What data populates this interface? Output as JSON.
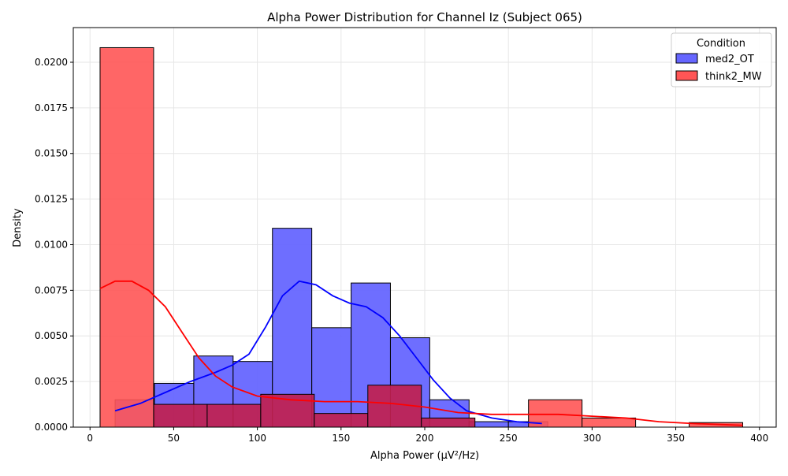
{
  "chart_data": {
    "type": "histogram",
    "title": "Alpha Power Distribution for Channel Iz (Subject 065)",
    "xlabel": "Alpha Power (µV²/Hz)",
    "ylabel": "Density",
    "xlim": [
      -10,
      410
    ],
    "ylim": [
      0,
      0.0219
    ],
    "x_ticks": [
      0,
      50,
      100,
      150,
      200,
      250,
      300,
      350,
      400
    ],
    "y_ticks": [
      0.0,
      0.0025,
      0.005,
      0.0075,
      0.01,
      0.0125,
      0.015,
      0.0175,
      0.02
    ],
    "y_tick_labels": [
      "0.0000",
      "0.0025",
      "0.0050",
      "0.0075",
      "0.0100",
      "0.0125",
      "0.0150",
      "0.0175",
      "0.0200"
    ],
    "grid": true,
    "legend": {
      "title": "Condition",
      "placement": "top-right"
    },
    "series": [
      {
        "name": "med2_OT",
        "color": "#6666ff",
        "line_color": "#0000ff",
        "bins": [
          {
            "x0": 15,
            "x1": 38.5,
            "value": 0.0015
          },
          {
            "x0": 38.5,
            "x1": 62,
            "value": 0.0024
          },
          {
            "x0": 62,
            "x1": 85.5,
            "value": 0.0039
          },
          {
            "x0": 85.5,
            "x1": 109,
            "value": 0.0036
          },
          {
            "x0": 109,
            "x1": 132.5,
            "value": 0.0109
          },
          {
            "x0": 132.5,
            "x1": 156,
            "value": 0.00545
          },
          {
            "x0": 156,
            "x1": 179.5,
            "value": 0.0079
          },
          {
            "x0": 179.5,
            "x1": 203,
            "value": 0.0049
          },
          {
            "x0": 203,
            "x1": 226.5,
            "value": 0.0015
          },
          {
            "x0": 226.5,
            "x1": 250,
            "value": 0.0003
          },
          {
            "x0": 250,
            "x1": 273.5,
            "value": 0.0003
          }
        ],
        "kde": [
          [
            15,
            0.0009
          ],
          [
            30,
            0.0013
          ],
          [
            45,
            0.0019
          ],
          [
            60,
            0.0025
          ],
          [
            75,
            0.003
          ],
          [
            85,
            0.0034
          ],
          [
            95,
            0.004
          ],
          [
            105,
            0.0055
          ],
          [
            115,
            0.0072
          ],
          [
            125,
            0.008
          ],
          [
            135,
            0.0078
          ],
          [
            145,
            0.0072
          ],
          [
            155,
            0.0068
          ],
          [
            165,
            0.0066
          ],
          [
            175,
            0.006
          ],
          [
            185,
            0.005
          ],
          [
            195,
            0.0038
          ],
          [
            205,
            0.0026
          ],
          [
            215,
            0.0016
          ],
          [
            225,
            0.0009
          ],
          [
            240,
            0.0005
          ],
          [
            255,
            0.0003
          ],
          [
            270,
            0.0002
          ]
        ]
      },
      {
        "name": "think2_MW",
        "color": "#ff5555",
        "line_color": "#ff0000",
        "bins": [
          {
            "x0": 6,
            "x1": 38,
            "value": 0.0208
          },
          {
            "x0": 38,
            "x1": 70,
            "value": 0.00125
          },
          {
            "x0": 70,
            "x1": 102,
            "value": 0.00125
          },
          {
            "x0": 102,
            "x1": 134,
            "value": 0.0018
          },
          {
            "x0": 134,
            "x1": 166,
            "value": 0.00075
          },
          {
            "x0": 166,
            "x1": 198,
            "value": 0.0023
          },
          {
            "x0": 198,
            "x1": 230,
            "value": 0.0005
          },
          {
            "x0": 230,
            "x1": 262,
            "value": 0.0
          },
          {
            "x0": 262,
            "x1": 294,
            "value": 0.0015
          },
          {
            "x0": 294,
            "x1": 326,
            "value": 0.0005
          },
          {
            "x0": 326,
            "x1": 358,
            "value": 0.0
          },
          {
            "x0": 358,
            "x1": 390,
            "value": 0.00025
          }
        ],
        "kde": [
          [
            6,
            0.0076
          ],
          [
            15,
            0.008
          ],
          [
            25,
            0.008
          ],
          [
            35,
            0.0075
          ],
          [
            45,
            0.0066
          ],
          [
            55,
            0.0052
          ],
          [
            65,
            0.0038
          ],
          [
            75,
            0.0028
          ],
          [
            85,
            0.0022
          ],
          [
            100,
            0.0017
          ],
          [
            120,
            0.0015
          ],
          [
            140,
            0.0014
          ],
          [
            160,
            0.0014
          ],
          [
            180,
            0.0013
          ],
          [
            200,
            0.0011
          ],
          [
            220,
            0.0008
          ],
          [
            240,
            0.0007
          ],
          [
            260,
            0.0007
          ],
          [
            280,
            0.0007
          ],
          [
            300,
            0.0006
          ],
          [
            320,
            0.0005
          ],
          [
            340,
            0.0003
          ],
          [
            360,
            0.0002
          ],
          [
            390,
            0.0001
          ]
        ]
      }
    ]
  }
}
